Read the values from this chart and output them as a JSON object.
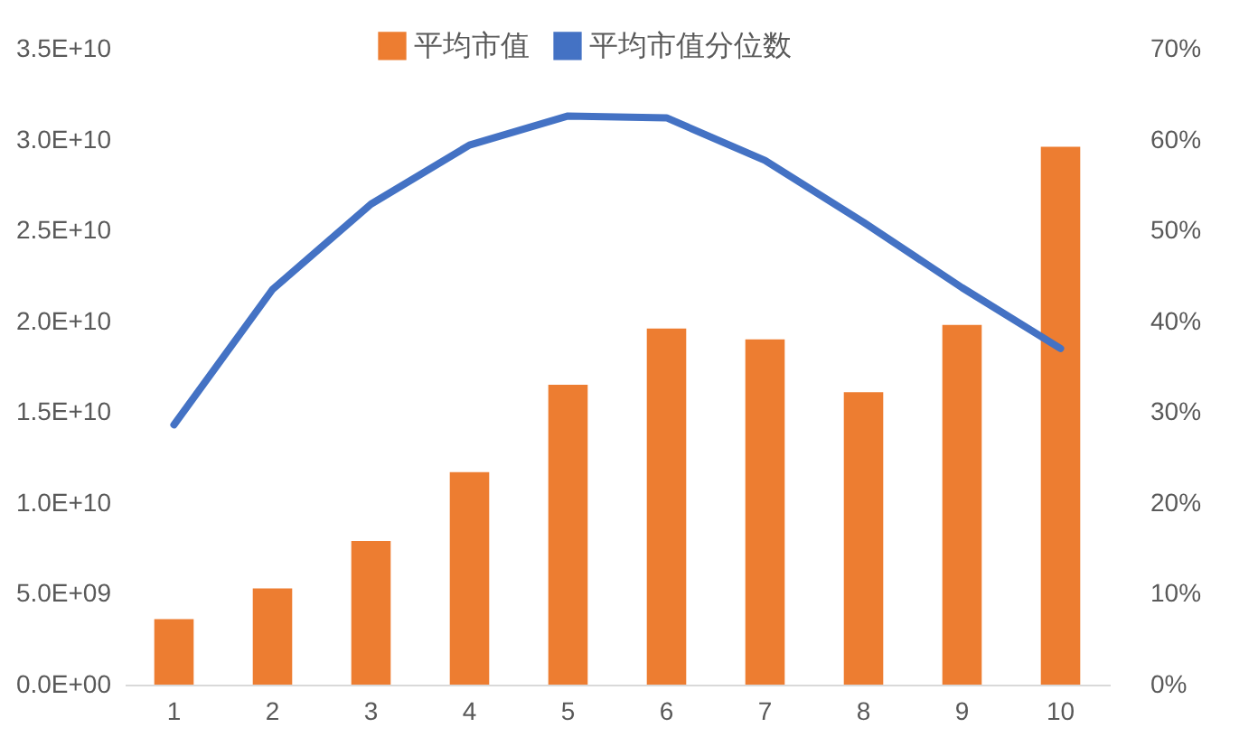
{
  "chart_data": {
    "type": "bar",
    "categories": [
      "1",
      "2",
      "3",
      "4",
      "5",
      "6",
      "7",
      "8",
      "9",
      "10"
    ],
    "series": [
      {
        "name": "平均市值",
        "color": "#ed7d31",
        "values": [
          3600000000.0,
          5300000000.0,
          7900000000.0,
          11700000000.0,
          16500000000.0,
          19600000000.0,
          19000000000.0,
          16100000000.0,
          19800000000.0,
          29600000000.0
        ]
      },
      {
        "name": "平均市值分位数",
        "type": "line",
        "axis": "y2",
        "color": "#4472c4",
        "values": [
          28.6,
          43.5,
          52.9,
          59.4,
          62.6,
          62.4,
          57.7,
          50.9,
          43.7,
          37.0
        ]
      }
    ],
    "ylim": [
      0,
      35000000000.0
    ],
    "yticks": [
      {
        "value": 0,
        "label": "0.0E+00"
      },
      {
        "value": 5000000000.0,
        "label": "5.0E+09"
      },
      {
        "value": 10000000000.0,
        "label": "1.0E+10"
      },
      {
        "value": 15000000000.0,
        "label": "1.5E+10"
      },
      {
        "value": 20000000000.0,
        "label": "2.0E+10"
      },
      {
        "value": 25000000000.0,
        "label": "2.5E+10"
      },
      {
        "value": 30000000000.0,
        "label": "3.0E+10"
      },
      {
        "value": 35000000000.0,
        "label": "3.5E+10"
      }
    ],
    "y2lim": [
      0,
      70
    ],
    "y2ticks": [
      {
        "value": 0,
        "label": "0%"
      },
      {
        "value": 10,
        "label": "10%"
      },
      {
        "value": 20,
        "label": "20%"
      },
      {
        "value": 30,
        "label": "30%"
      },
      {
        "value": 40,
        "label": "40%"
      },
      {
        "value": 50,
        "label": "50%"
      },
      {
        "value": 60,
        "label": "60%"
      },
      {
        "value": 70,
        "label": "70%"
      }
    ],
    "grid": false,
    "legend": "top"
  }
}
